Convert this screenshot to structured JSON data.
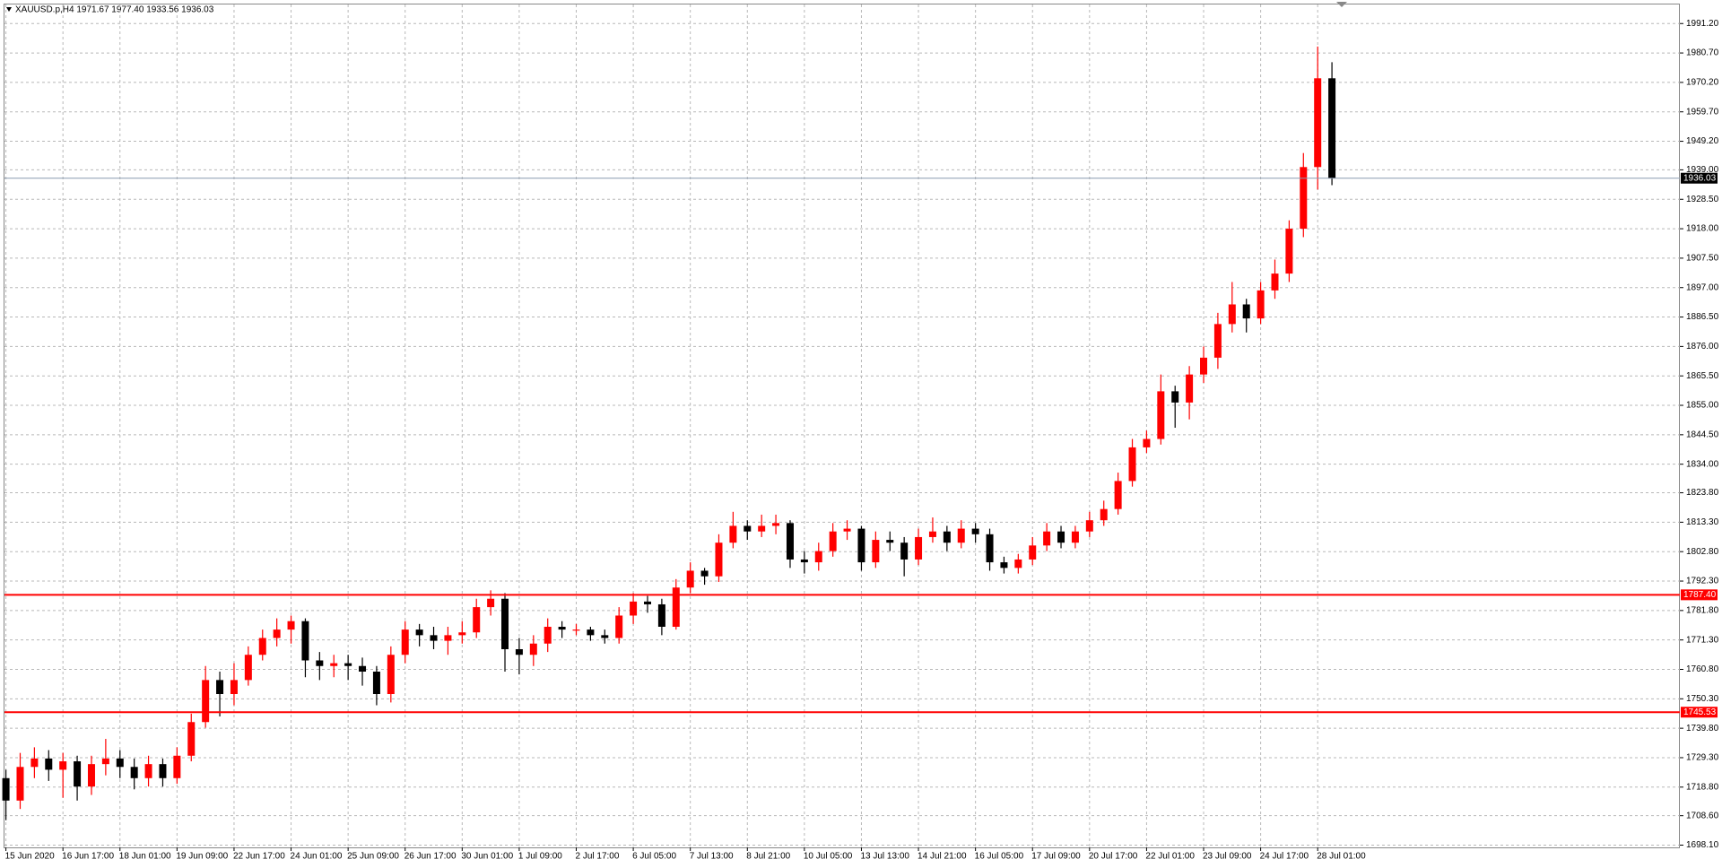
{
  "chart_data": {
    "type": "candlestick",
    "header": "XAUUSD.p,H4  1971.67 1977.40 1933.56 1936.03",
    "up_color": "#ff0000",
    "down_color": "#000000",
    "grid": true,
    "ylim": [
      1697.3,
      1998
    ],
    "yticks": [
      {
        "value": 1991.2,
        "label": "1991.20"
      },
      {
        "value": 1980.7,
        "label": "1980.70"
      },
      {
        "value": 1970.2,
        "label": "1970.20"
      },
      {
        "value": 1959.7,
        "label": "1959.70"
      },
      {
        "value": 1949.2,
        "label": "1949.20"
      },
      {
        "value": 1939,
        "label": "1939.00"
      },
      {
        "value": 1928.5,
        "label": "1928.50"
      },
      {
        "value": 1918,
        "label": "1918.00"
      },
      {
        "value": 1907.5,
        "label": "1907.50"
      },
      {
        "value": 1897,
        "label": "1897.00"
      },
      {
        "value": 1886.5,
        "label": "1886.50"
      },
      {
        "value": 1876,
        "label": "1876.00"
      },
      {
        "value": 1865.5,
        "label": "1865.50"
      },
      {
        "value": 1855,
        "label": "1855.00"
      },
      {
        "value": 1844.5,
        "label": "1844.50"
      },
      {
        "value": 1834,
        "label": "1834.00"
      },
      {
        "value": 1823.8,
        "label": "1823.80"
      },
      {
        "value": 1813.3,
        "label": "1813.30"
      },
      {
        "value": 1802.8,
        "label": "1802.80"
      },
      {
        "value": 1792.3,
        "label": "1792.30"
      },
      {
        "value": 1781.8,
        "label": "1781.80"
      },
      {
        "value": 1771.3,
        "label": "1771.30"
      },
      {
        "value": 1760.8,
        "label": "1760.80"
      },
      {
        "value": 1750.3,
        "label": "1750.30"
      },
      {
        "value": 1739.8,
        "label": "1739.80"
      },
      {
        "value": 1729.3,
        "label": "1729.30"
      },
      {
        "value": 1718.8,
        "label": "1718.80"
      },
      {
        "value": 1708.6,
        "label": "1708.60"
      },
      {
        "value": 1698.1,
        "label": "1698.10"
      }
    ],
    "xlim": [
      -0.1,
      117.4
    ],
    "xticks": [
      {
        "value": 0,
        "label": "15 Jun 2020"
      },
      {
        "value": 4,
        "label": "16 Jun 17:00"
      },
      {
        "value": 8,
        "label": "18 Jun 01:00"
      },
      {
        "value": 12,
        "label": "19 Jun 09:00"
      },
      {
        "value": 16,
        "label": "22 Jun 17:00"
      },
      {
        "value": 20,
        "label": "24 Jun 01:00"
      },
      {
        "value": 24,
        "label": "25 Jun 09:00"
      },
      {
        "value": 28,
        "label": "26 Jun 17:00"
      },
      {
        "value": 32,
        "label": "30 Jun 01:00"
      },
      {
        "value": 36,
        "label": "1 Jul 09:00"
      },
      {
        "value": 40,
        "label": "2 Jul 17:00"
      },
      {
        "value": 44,
        "label": "6 Jul 05:00"
      },
      {
        "value": 48,
        "label": "7 Jul 13:00"
      },
      {
        "value": 52,
        "label": "8 Jul 21:00"
      },
      {
        "value": 56,
        "label": "10 Jul 05:00"
      },
      {
        "value": 60,
        "label": "13 Jul 13:00"
      },
      {
        "value": 64,
        "label": "14 Jul 21:00"
      },
      {
        "value": 68,
        "label": "16 Jul 05:00"
      },
      {
        "value": 72,
        "label": "17 Jul 09:00"
      },
      {
        "value": 76,
        "label": "20 Jul 17:00"
      },
      {
        "value": 80,
        "label": "22 Jul 01:00"
      },
      {
        "value": 84,
        "label": "23 Jul 09:00"
      },
      {
        "value": 88,
        "label": "24 Jul 17:00"
      },
      {
        "value": 92,
        "label": "28 Jul 01:00"
      }
    ],
    "open": [
      1722,
      1714,
      1726,
      1729,
      1725,
      1728,
      1719,
      1727,
      1729,
      1726,
      1722,
      1727,
      1722,
      1730,
      1742,
      1757,
      1752,
      1757,
      1766,
      1772,
      1775,
      1778,
      1764,
      1762,
      1763,
      1762,
      1760,
      1752,
      1766,
      1775,
      1773,
      1771,
      1773,
      1774,
      1783,
      1786,
      1768,
      1766,
      1770,
      1776,
      1775,
      1775,
      1773,
      1772,
      1780,
      1785,
      1784,
      1776,
      1790,
      1796,
      1794,
      1806,
      1812,
      1810,
      1812,
      1813,
      1800,
      1799,
      1803,
      1810,
      1811,
      1799,
      1807,
      1806,
      1800,
      1808,
      1810,
      1806,
      1811,
      1809,
      1799,
      1797,
      1800,
      1805,
      1810,
      1806,
      1810,
      1814,
      1818,
      1828,
      1840,
      1843,
      1860,
      1856,
      1866,
      1872,
      1884,
      1891,
      1886,
      1896,
      1902,
      1918,
      1940,
      1971.67
    ],
    "high": [
      1725,
      1731,
      1733,
      1732,
      1731,
      1730,
      1730,
      1736,
      1732,
      1729,
      1730,
      1729,
      1733,
      1745,
      1762,
      1760,
      1763,
      1769,
      1775,
      1779,
      1780,
      1779,
      1767,
      1766,
      1766,
      1765,
      1762,
      1769,
      1778,
      1777,
      1776,
      1776,
      1778,
      1786,
      1789,
      1788,
      1772,
      1773,
      1779,
      1778,
      1777,
      1776,
      1775,
      1783,
      1788,
      1787,
      1786,
      1793,
      1799,
      1797,
      1809,
      1817,
      1814,
      1816,
      1816,
      1814,
      1803,
      1806,
      1813,
      1814,
      1812,
      1810,
      1810,
      1808,
      1811,
      1815,
      1812,
      1814,
      1813,
      1811,
      1801,
      1802,
      1808,
      1813,
      1812,
      1812,
      1817,
      1821,
      1831,
      1843,
      1846,
      1866,
      1862,
      1869,
      1876,
      1888,
      1899,
      1893,
      1899,
      1907,
      1921,
      1945,
      1983,
      1977.4
    ],
    "low": [
      1707,
      1711,
      1722,
      1721,
      1715,
      1714,
      1716,
      1723,
      1722,
      1718,
      1719,
      1719,
      1720,
      1728,
      1740,
      1744,
      1748,
      1755,
      1764,
      1769,
      1770,
      1758,
      1757,
      1758,
      1757,
      1755,
      1748,
      1749,
      1763,
      1769,
      1768,
      1766,
      1770,
      1772,
      1780,
      1760,
      1759,
      1762,
      1767,
      1772,
      1773,
      1771,
      1770,
      1770,
      1777,
      1781,
      1773,
      1775,
      1788,
      1791,
      1792,
      1804,
      1807,
      1808,
      1809,
      1797,
      1795,
      1796,
      1801,
      1807,
      1796,
      1797,
      1803,
      1794,
      1798,
      1806,
      1803,
      1804,
      1806,
      1796,
      1795,
      1795,
      1798,
      1803,
      1804,
      1804,
      1808,
      1812,
      1816,
      1826,
      1838,
      1841,
      1847,
      1850,
      1863,
      1868,
      1881,
      1881,
      1884,
      1893,
      1899,
      1915,
      1932,
      1933.56
    ],
    "close": [
      1714,
      1726,
      1729,
      1725,
      1728,
      1719,
      1727,
      1729,
      1726,
      1722,
      1727,
      1722,
      1730,
      1742,
      1757,
      1752,
      1757,
      1766,
      1772,
      1775,
      1778,
      1764,
      1762,
      1763,
      1762,
      1760,
      1752,
      1766,
      1775,
      1773,
      1771,
      1773,
      1774,
      1783,
      1786,
      1768,
      1766,
      1770,
      1776,
      1775,
      1775,
      1773,
      1772,
      1780,
      1785,
      1784,
      1776,
      1790,
      1796,
      1794,
      1806,
      1812,
      1810,
      1812,
      1813,
      1800,
      1799,
      1803,
      1810,
      1811,
      1799,
      1807,
      1806,
      1800,
      1808,
      1810,
      1806,
      1811,
      1809,
      1799,
      1797,
      1800,
      1805,
      1810,
      1806,
      1810,
      1814,
      1818,
      1828,
      1840,
      1843,
      1860,
      1856,
      1866,
      1872,
      1884,
      1891,
      1886,
      1896,
      1902,
      1918,
      1940,
      1971.67,
      1936.03
    ],
    "levels": [
      {
        "value": 1787.4,
        "label": "1787.40",
        "color": "#ff0000"
      },
      {
        "value": 1745.53,
        "label": "1745.53",
        "color": "#ff0000"
      }
    ],
    "bid": {
      "value": 1936.03,
      "color": "#8a9bb0"
    }
  }
}
